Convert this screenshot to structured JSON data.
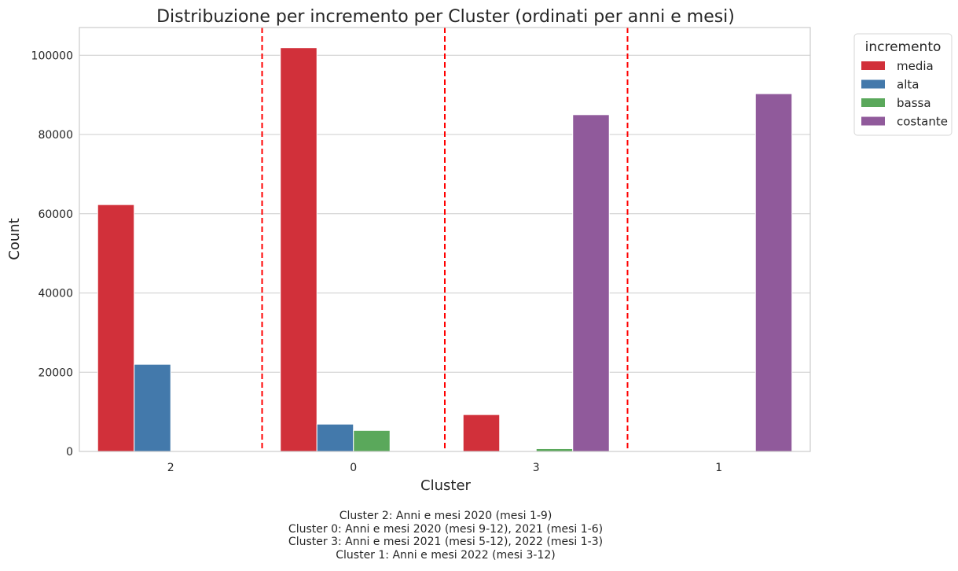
{
  "chart_data": {
    "type": "bar",
    "title": "Distribuzione per incremento per Cluster (ordinati per anni e mesi)",
    "xlabel": "Cluster",
    "ylabel": "Count",
    "categories": [
      "2",
      "0",
      "3",
      "1"
    ],
    "series": [
      {
        "name": "media",
        "color": "#d1303a",
        "values": [
          62300,
          101900,
          9300,
          0
        ]
      },
      {
        "name": "alta",
        "color": "#4379ab",
        "values": [
          22000,
          6900,
          0,
          0
        ]
      },
      {
        "name": "bassa",
        "color": "#5aa85b",
        "values": [
          0,
          5300,
          700,
          0
        ]
      },
      {
        "name": "costante",
        "color": "#905a9b",
        "values": [
          0,
          0,
          85000,
          90300
        ]
      }
    ],
    "ylim": [
      0,
      107000
    ],
    "yticks": [
      0,
      20000,
      40000,
      60000,
      80000,
      100000
    ],
    "grid": "horizontal",
    "legend": {
      "title": "incremento",
      "placement": "outside top-right"
    },
    "separators": {
      "style": "dashed",
      "color": "#ff0000",
      "between_categories": true
    }
  },
  "caption": [
    "Cluster 2: Anni e mesi 2020 (mesi 1-9)",
    "Cluster 0: Anni e mesi 2020 (mesi 9-12), 2021 (mesi 1-6)",
    "Cluster 3: Anni e mesi 2021 (mesi 5-12), 2022 (mesi 1-3)",
    "Cluster 1: Anni e mesi 2022 (mesi 3-12)"
  ]
}
